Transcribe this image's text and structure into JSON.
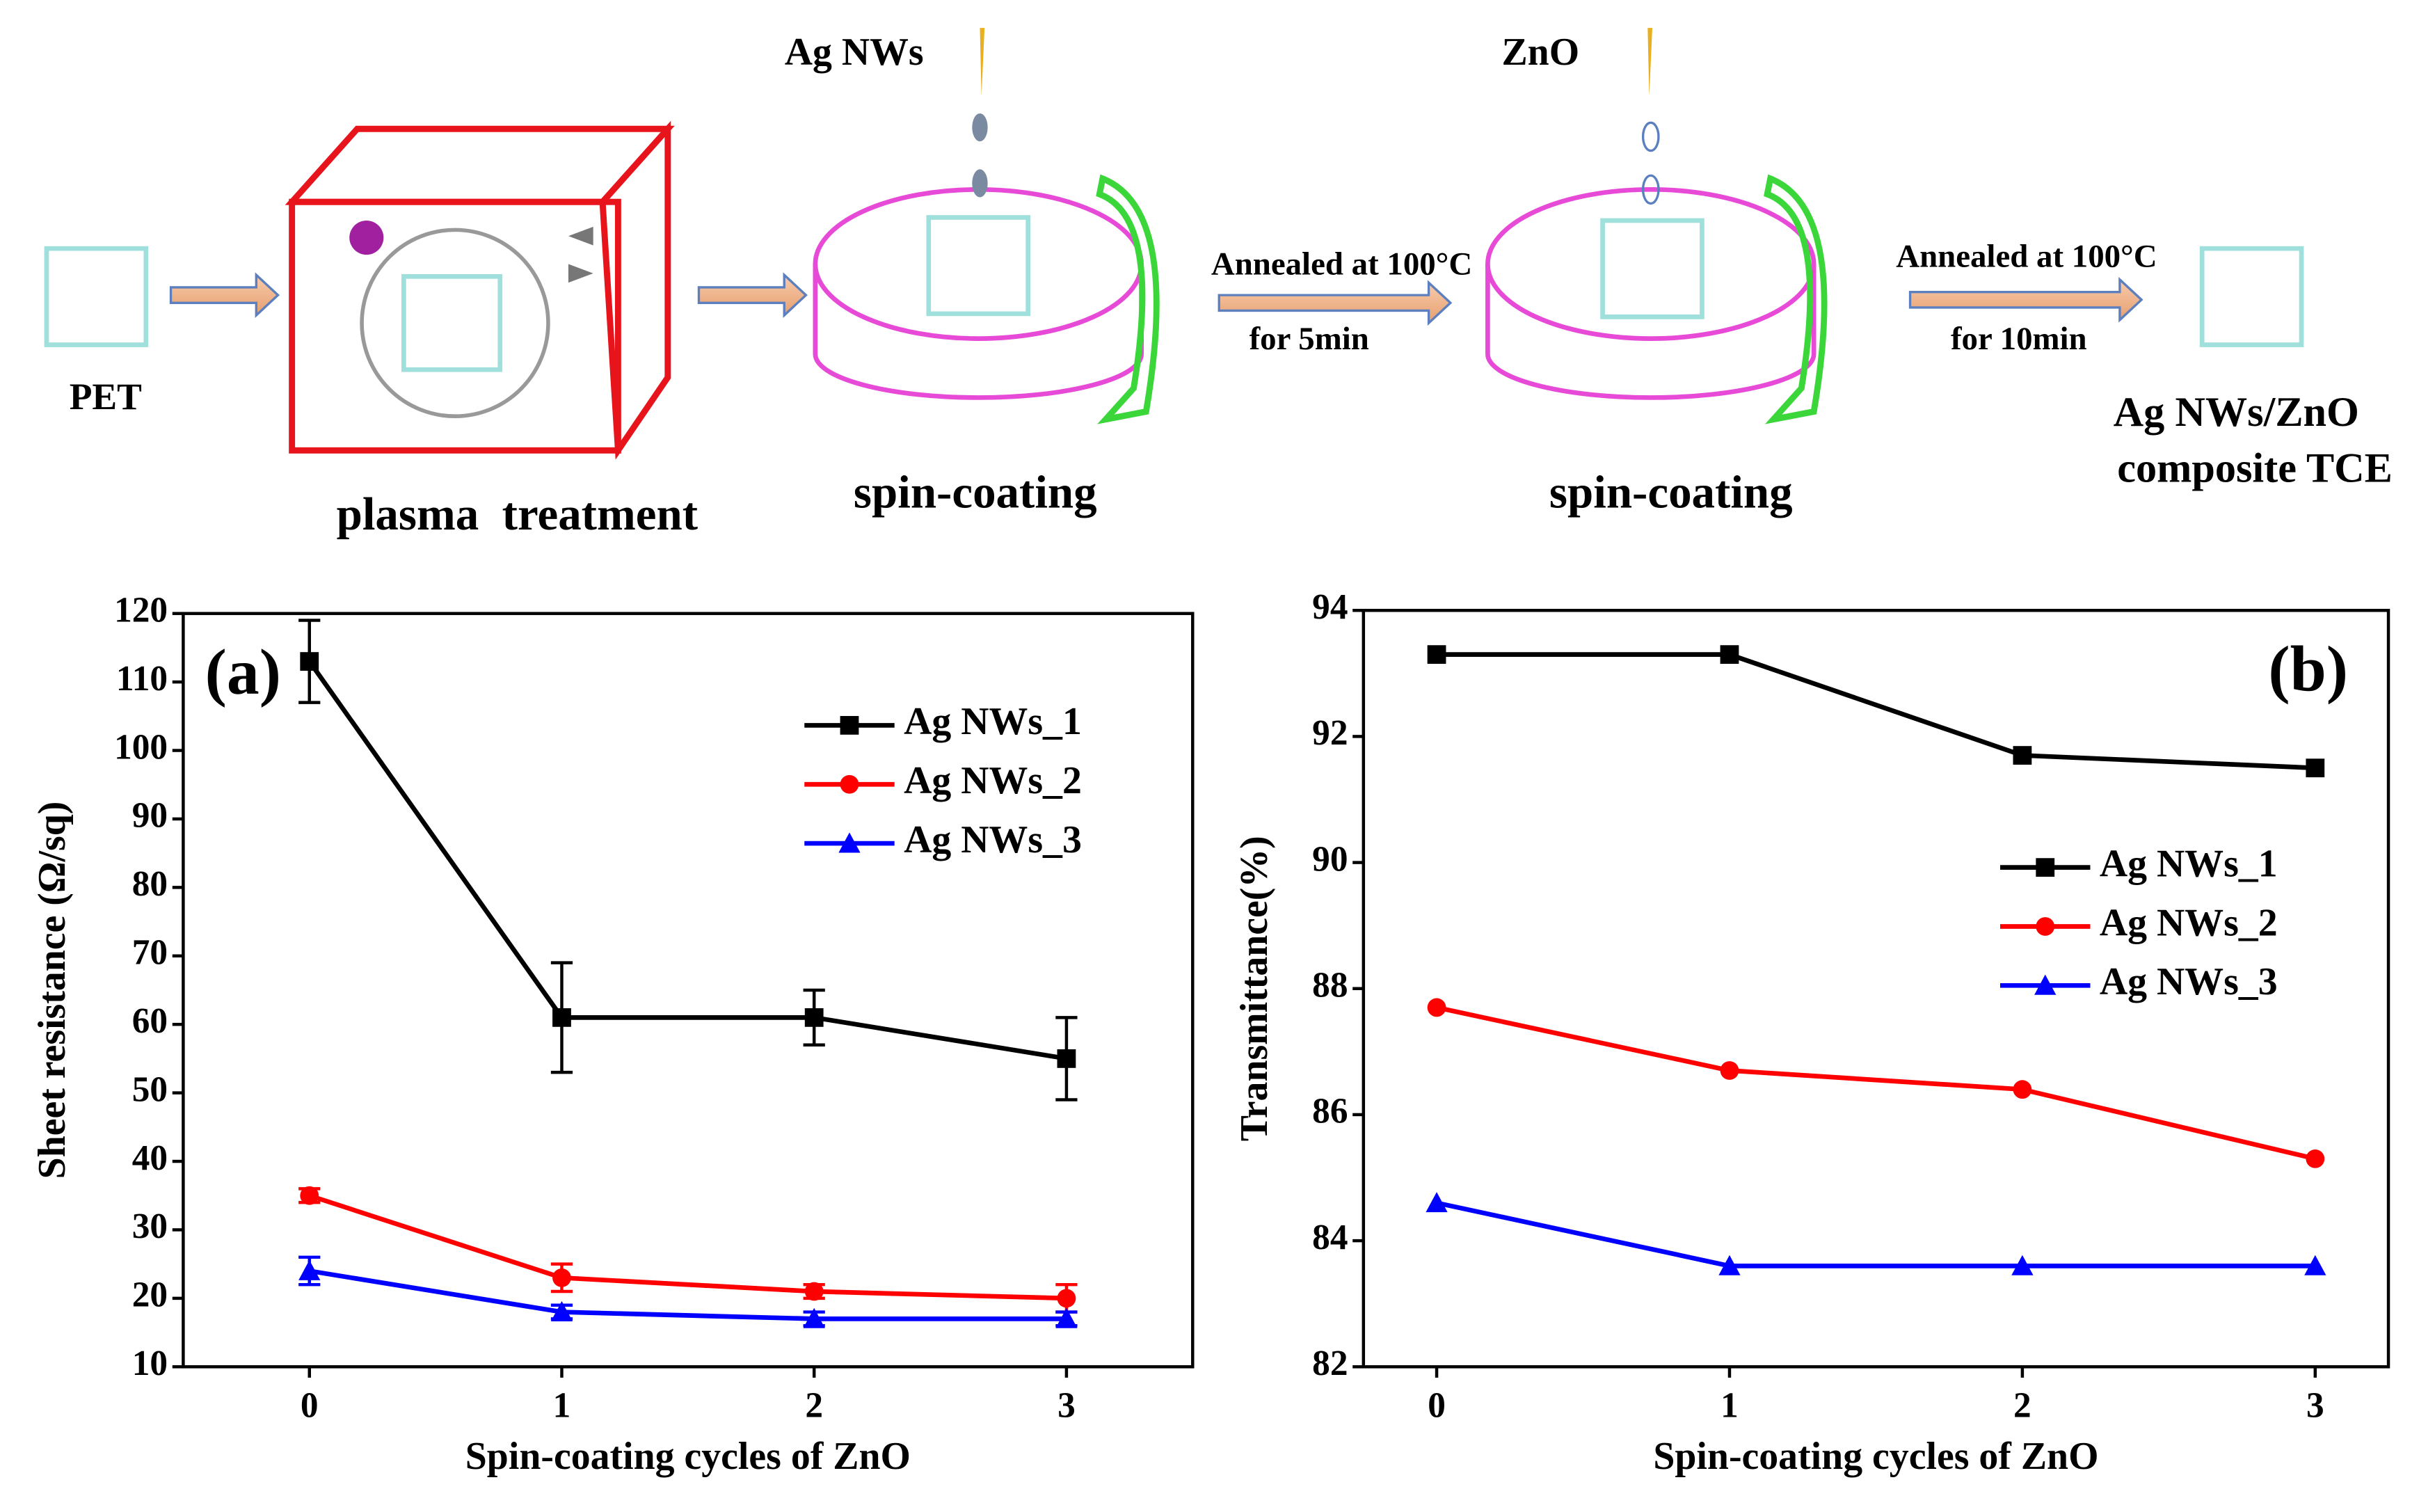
{
  "diagram": {
    "labels": [
      "Ag NWs",
      "ZnO",
      "PET",
      "plasma  treatment",
      "spin-coating",
      "Annealed at 100°C",
      "for 5min",
      "spin-coating",
      "Annealed at 100°C",
      "for 10min",
      "Ag NWs/ZnO",
      "composite TCE"
    ]
  },
  "chart_data": [
    {
      "type": "line",
      "annotation": "(a)",
      "x_label": "Spin-coating cycles of ZnO",
      "y_label": "Sheet resistance (Ω/sq)",
      "x": [
        0,
        1,
        2,
        3
      ],
      "xlim": [
        -0.5,
        3.5
      ],
      "xticks": [
        0,
        1,
        2,
        3
      ],
      "ylim": [
        10,
        120
      ],
      "yticks": [
        10,
        20,
        30,
        40,
        50,
        60,
        70,
        80,
        90,
        100,
        110,
        120
      ],
      "legend": "upper right",
      "series": [
        {
          "name": "Ag NWs_1",
          "color": "#000000",
          "marker": "square",
          "values": [
            113,
            61,
            61,
            55
          ],
          "errors": [
            6,
            8,
            4,
            6
          ]
        },
        {
          "name": "Ag NWs_2",
          "color": "#ff0000",
          "marker": "circle",
          "values": [
            35,
            23,
            21,
            20
          ],
          "errors": [
            1,
            2,
            1,
            2
          ]
        },
        {
          "name": "Ag NWs_3",
          "color": "#0000ff",
          "marker": "triangle",
          "values": [
            24,
            18,
            17,
            17
          ],
          "errors": [
            2,
            1,
            1,
            1
          ]
        }
      ]
    },
    {
      "type": "line",
      "annotation": "(b)",
      "x_label": "Spin-coating cycles of ZnO",
      "y_label": "Transmittance(%)",
      "x": [
        0,
        1,
        2,
        3
      ],
      "xlim": [
        -0.25,
        3.25
      ],
      "xticks": [
        0,
        1,
        2,
        3
      ],
      "ylim": [
        82,
        94
      ],
      "yticks": [
        82,
        84,
        86,
        88,
        90,
        92,
        94
      ],
      "legend": "center right",
      "series": [
        {
          "name": "Ag NWs_1",
          "color": "#000000",
          "marker": "square",
          "values": [
            93.3,
            93.3,
            91.7,
            91.5
          ]
        },
        {
          "name": "Ag NWs_2",
          "color": "#ff0000",
          "marker": "circle",
          "values": [
            87.7,
            86.7,
            86.4,
            85.3
          ]
        },
        {
          "name": "Ag NWs_3",
          "color": "#0000ff",
          "marker": "triangle",
          "values": [
            84.6,
            83.6,
            83.6,
            83.6
          ]
        }
      ]
    }
  ]
}
